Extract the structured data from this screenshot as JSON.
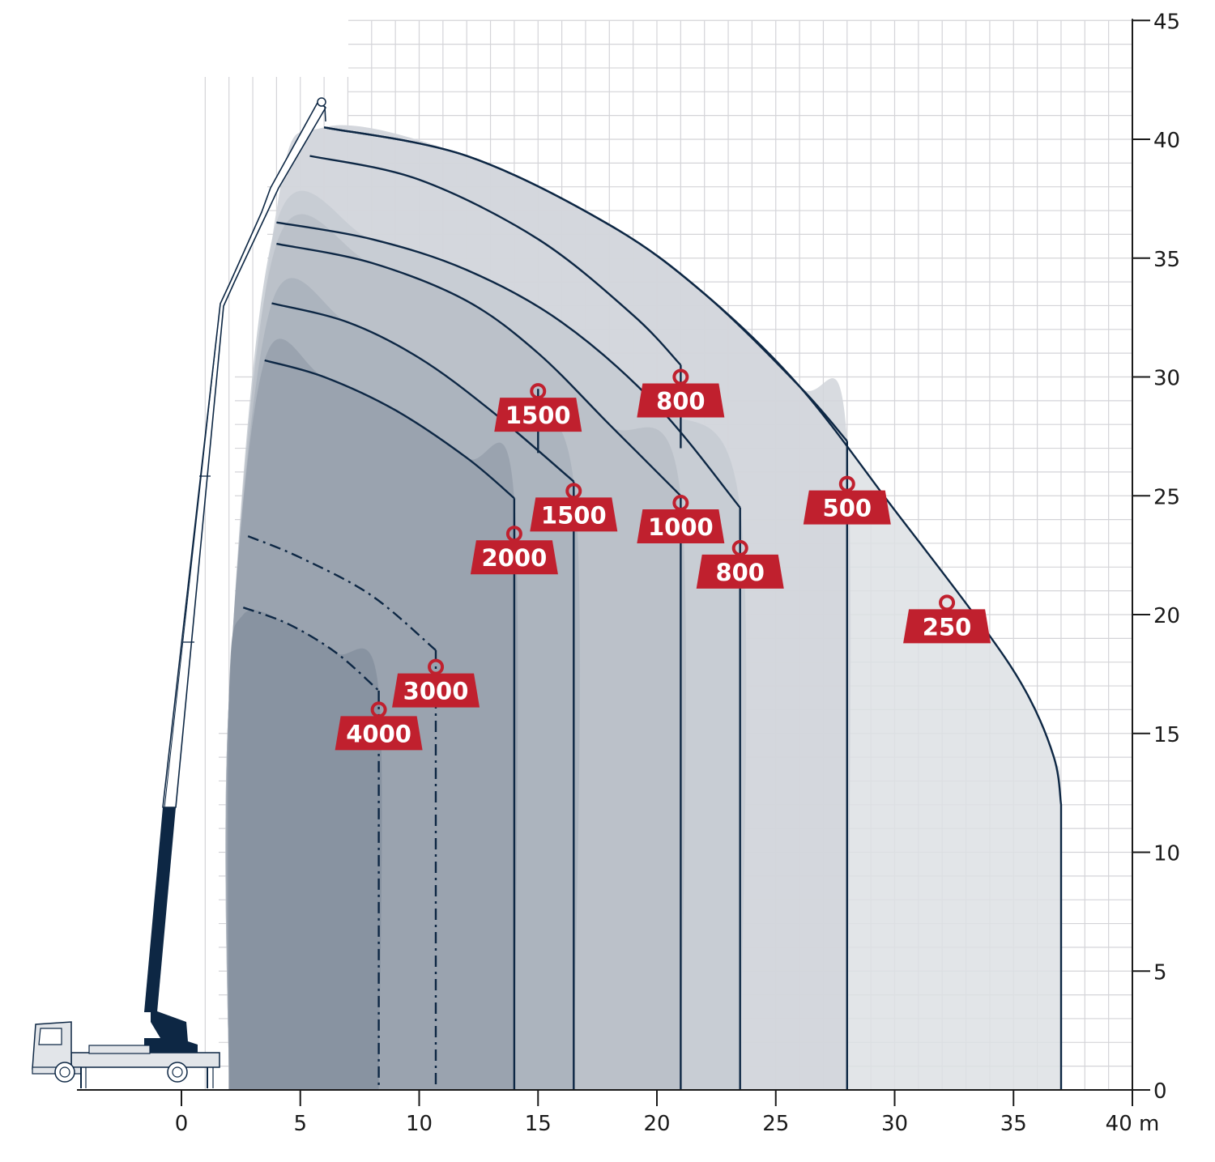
{
  "colors": {
    "grid": "#d4d4d8",
    "curve": "#0d2744",
    "weight_fill": "#c0202e",
    "boom_base": "#0d2744",
    "zone_fills": [
      "#dde0e4",
      "#d1d5da",
      "#c6cbd2",
      "#b8bec7",
      "#a9b1bc",
      "#97a0ad",
      "#85909f"
    ]
  },
  "chart_data": {
    "type": "area",
    "title": "",
    "xlabel": "m",
    "ylabel": "",
    "xlim": [
      -6,
      40
    ],
    "ylim": [
      0,
      45
    ],
    "grid": true,
    "x_ticks": [
      0,
      5,
      10,
      15,
      20,
      25,
      30,
      35,
      40
    ],
    "x_tick_labels": [
      "0",
      "5",
      "10",
      "15",
      "20",
      "25",
      "30",
      "35",
      "40 m"
    ],
    "y_ticks": [
      0,
      5,
      10,
      15,
      20,
      25,
      30,
      35,
      40,
      45
    ],
    "y_tick_labels": [
      "0",
      "5",
      "10",
      "15",
      "20",
      "25",
      "30",
      "35",
      "40",
      "45"
    ],
    "series": [
      {
        "name": "250",
        "style": "solid",
        "max_radius": 37.0,
        "label_at": [
          32.2,
          20.5
        ],
        "points": [
          [
            6,
            40.5
          ],
          [
            12,
            39.3
          ],
          [
            18,
            36.4
          ],
          [
            22,
            33.5
          ],
          [
            26,
            29.6
          ],
          [
            30,
            24.4
          ],
          [
            33.5,
            19.8
          ],
          [
            35.5,
            16.8
          ],
          [
            36.7,
            14.0
          ],
          [
            37.0,
            12.0
          ],
          [
            37.0,
            0
          ]
        ]
      },
      {
        "name": "500",
        "style": "solid",
        "max_radius": 28.0,
        "label_at": [
          28.0,
          25.5
        ],
        "points": [
          [
            6,
            40.5
          ],
          [
            12,
            39.3
          ],
          [
            18,
            36.4
          ],
          [
            22,
            33.5
          ],
          [
            26,
            29.6
          ],
          [
            28.0,
            27.3
          ],
          [
            28.0,
            0
          ]
        ]
      },
      {
        "name": "800",
        "style": "solid",
        "max_radius": 21.0,
        "label_at": [
          21.0,
          30.0
        ],
        "points": [
          [
            5.4,
            39.3
          ],
          [
            10,
            38.3
          ],
          [
            15,
            35.8
          ],
          [
            19,
            32.6
          ],
          [
            21.0,
            30.5
          ],
          [
            21.0,
            27.0
          ]
        ]
      },
      {
        "name": "800",
        "style": "solid",
        "max_radius": 23.5,
        "label_at": [
          23.5,
          22.8
        ],
        "points": [
          [
            4.0,
            36.5
          ],
          [
            8,
            35.8
          ],
          [
            12,
            34.5
          ],
          [
            16,
            32.3
          ],
          [
            20,
            28.8
          ],
          [
            23.5,
            24.5
          ],
          [
            23.5,
            0
          ]
        ]
      },
      {
        "name": "1000",
        "style": "solid",
        "max_radius": 21.0,
        "label_at": [
          21.0,
          24.7
        ],
        "points": [
          [
            4.0,
            35.6
          ],
          [
            8,
            34.8
          ],
          [
            12,
            33.2
          ],
          [
            15,
            31.0
          ],
          [
            18,
            28.0
          ],
          [
            21.0,
            25.0
          ],
          [
            21.0,
            0
          ]
        ]
      },
      {
        "name": "1500",
        "style": "solid",
        "max_radius": 15.0,
        "label_at": [
          15.0,
          29.4
        ],
        "points": [
          [
            15.0,
            29.5
          ],
          [
            15.0,
            26.8
          ]
        ]
      },
      {
        "name": "1500",
        "style": "solid",
        "max_radius": 16.5,
        "label_at": [
          16.5,
          25.2
        ],
        "points": [
          [
            3.8,
            33.1
          ],
          [
            7,
            32.3
          ],
          [
            10,
            30.8
          ],
          [
            13,
            28.6
          ],
          [
            16.5,
            25.6
          ],
          [
            16.5,
            0
          ]
        ]
      },
      {
        "name": "2000",
        "style": "solid",
        "max_radius": 14.0,
        "label_at": [
          14.0,
          23.4
        ],
        "points": [
          [
            3.5,
            30.7
          ],
          [
            6,
            30.0
          ],
          [
            9,
            28.6
          ],
          [
            12,
            26.6
          ],
          [
            14.0,
            24.9
          ],
          [
            14.0,
            0
          ]
        ]
      },
      {
        "name": "3000",
        "style": "dashdot",
        "max_radius": 10.7,
        "label_at": [
          10.7,
          17.8
        ],
        "points": [
          [
            2.8,
            23.3
          ],
          [
            5,
            22.4
          ],
          [
            8,
            20.8
          ],
          [
            10.7,
            18.5
          ],
          [
            10.7,
            0
          ]
        ]
      },
      {
        "name": "4000",
        "style": "dashdot",
        "max_radius": 8.3,
        "label_at": [
          8.3,
          16.0
        ],
        "points": [
          [
            2.6,
            20.3
          ],
          [
            4.5,
            19.6
          ],
          [
            6.5,
            18.4
          ],
          [
            8.3,
            16.8
          ],
          [
            8.3,
            0
          ]
        ]
      }
    ],
    "zones": [
      {
        "points": [
          [
            2,
            0
          ],
          [
            2,
            16.5
          ],
          [
            4.0,
            37.0
          ],
          [
            6,
            40.5
          ],
          [
            12,
            39.3
          ],
          [
            18,
            36.4
          ],
          [
            22,
            33.5
          ],
          [
            26,
            29.6
          ],
          [
            30,
            24.4
          ],
          [
            33.5,
            19.8
          ],
          [
            35.5,
            16.8
          ],
          [
            36.7,
            14.0
          ],
          [
            37.0,
            12.0
          ],
          [
            37.0,
            0
          ]
        ]
      },
      {
        "points": [
          [
            2,
            0
          ],
          [
            2,
            16.5
          ],
          [
            4.0,
            37.0
          ],
          [
            6,
            40.5
          ],
          [
            12,
            39.3
          ],
          [
            18,
            36.4
          ],
          [
            22,
            33.5
          ],
          [
            26,
            29.6
          ],
          [
            28.0,
            27.3
          ],
          [
            28.0,
            0
          ]
        ]
      },
      {
        "points": [
          [
            2,
            0
          ],
          [
            2,
            16.5
          ],
          [
            4.0,
            36.5
          ],
          [
            8,
            35.8
          ],
          [
            12,
            34.5
          ],
          [
            16,
            32.3
          ],
          [
            20,
            28.8
          ],
          [
            23.5,
            24.5
          ],
          [
            23.5,
            0
          ]
        ]
      },
      {
        "points": [
          [
            2,
            0
          ],
          [
            2,
            16.5
          ],
          [
            4.0,
            35.6
          ],
          [
            8,
            34.8
          ],
          [
            12,
            33.2
          ],
          [
            15,
            31.0
          ],
          [
            18,
            28.0
          ],
          [
            21.0,
            25.0
          ],
          [
            21.0,
            0
          ]
        ]
      },
      {
        "points": [
          [
            2,
            0
          ],
          [
            2,
            16.5
          ],
          [
            3.8,
            33.1
          ],
          [
            7,
            32.3
          ],
          [
            10,
            30.8
          ],
          [
            13,
            28.6
          ],
          [
            16.5,
            25.6
          ],
          [
            16.5,
            0
          ]
        ]
      },
      {
        "points": [
          [
            2,
            0
          ],
          [
            2,
            16.5
          ],
          [
            3.5,
            30.7
          ],
          [
            6,
            30.0
          ],
          [
            9,
            28.6
          ],
          [
            12,
            26.6
          ],
          [
            14.0,
            24.9
          ],
          [
            14.0,
            0
          ]
        ]
      },
      {
        "points": [
          [
            2,
            0
          ],
          [
            2,
            16.5
          ],
          [
            2.6,
            20.0
          ],
          [
            4.5,
            19.6
          ],
          [
            6.5,
            18.4
          ],
          [
            8.3,
            16.8
          ],
          [
            8.3,
            0
          ]
        ]
      }
    ]
  }
}
